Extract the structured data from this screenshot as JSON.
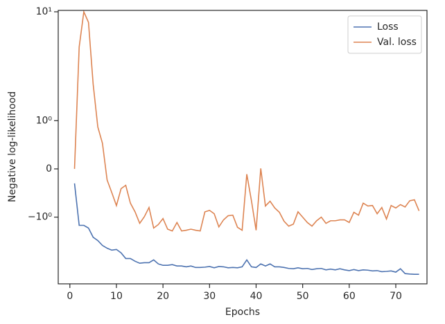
{
  "chart_data": {
    "type": "line",
    "xlabel": "Epochs",
    "ylabel": "Negative log-likelihood",
    "yscale": "symlog",
    "linthresh": 1,
    "x": [
      1,
      2,
      3,
      4,
      5,
      6,
      7,
      8,
      9,
      10,
      11,
      12,
      13,
      14,
      15,
      16,
      17,
      18,
      19,
      20,
      21,
      22,
      23,
      24,
      25,
      26,
      27,
      28,
      29,
      30,
      31,
      32,
      33,
      34,
      35,
      36,
      37,
      38,
      39,
      40,
      41,
      42,
      43,
      44,
      45,
      46,
      47,
      48,
      49,
      50,
      51,
      52,
      53,
      54,
      55,
      56,
      57,
      58,
      59,
      60,
      61,
      62,
      63,
      64,
      65,
      66,
      67,
      68,
      69,
      70,
      71,
      72,
      73,
      74,
      75
    ],
    "series": [
      {
        "name": "Loss",
        "color": "#4c72b0",
        "values": [
          -0.3,
          -1.19,
          -1.19,
          -1.26,
          -1.53,
          -1.64,
          -1.82,
          -1.93,
          -2.01,
          -1.98,
          -2.13,
          -2.4,
          -2.4,
          -2.54,
          -2.65,
          -2.62,
          -2.62,
          -2.47,
          -2.69,
          -2.77,
          -2.77,
          -2.73,
          -2.81,
          -2.81,
          -2.86,
          -2.81,
          -2.9,
          -2.9,
          -2.88,
          -2.84,
          -2.92,
          -2.84,
          -2.86,
          -2.92,
          -2.9,
          -2.92,
          -2.86,
          -2.47,
          -2.86,
          -2.9,
          -2.69,
          -2.81,
          -2.69,
          -2.86,
          -2.86,
          -2.9,
          -2.96,
          -2.98,
          -2.92,
          -2.98,
          -2.96,
          -3.03,
          -2.98,
          -2.96,
          -3.05,
          -3.0,
          -3.05,
          -2.98,
          -3.05,
          -3.1,
          -3.03,
          -3.1,
          -3.05,
          -3.07,
          -3.12,
          -3.1,
          -3.17,
          -3.15,
          -3.12,
          -3.2,
          -2.98,
          -3.3,
          -3.33,
          -3.35,
          -3.35
        ]
      },
      {
        "name": "Val. loss",
        "color": "#dd8452",
        "values": [
          0,
          4.75,
          10,
          8.0,
          2.17,
          0.87,
          0.53,
          -0.23,
          -0.49,
          -0.76,
          -0.41,
          -0.34,
          -0.71,
          -0.89,
          -1.14,
          -0.99,
          -0.8,
          -1.26,
          -1.17,
          -1.03,
          -1.29,
          -1.34,
          -1.12,
          -1.34,
          -1.32,
          -1.29,
          -1.32,
          -1.34,
          -0.89,
          -0.86,
          -0.93,
          -1.23,
          -1.06,
          -0.97,
          -0.96,
          -1.24,
          -1.32,
          -0.11,
          -0.66,
          -1.32,
          0.01,
          -0.77,
          -0.67,
          -0.81,
          -0.9,
          -1.09,
          -1.21,
          -1.16,
          -0.89,
          -1.0,
          -1.12,
          -1.21,
          -1.08,
          -1.0,
          -1.14,
          -1.08,
          -1.08,
          -1.06,
          -1.06,
          -1.12,
          -0.9,
          -0.96,
          -0.71,
          -0.77,
          -0.76,
          -0.93,
          -0.8,
          -1.04,
          -0.76,
          -0.81,
          -0.74,
          -0.79,
          -0.66,
          -0.64,
          -0.87
        ]
      }
    ],
    "xlim": [
      -2.5,
      76.7
    ],
    "xticks": [
      0,
      10,
      20,
      30,
      40,
      50,
      60,
      70
    ],
    "ylim": [
      -4.1,
      10.3
    ],
    "yticks": [
      {
        "value": 10,
        "label": "10¹"
      },
      {
        "value": 1,
        "label": "10⁰"
      },
      0,
      {
        "value": -1,
        "label": "−10⁰"
      }
    ],
    "legend": "upper right"
  }
}
